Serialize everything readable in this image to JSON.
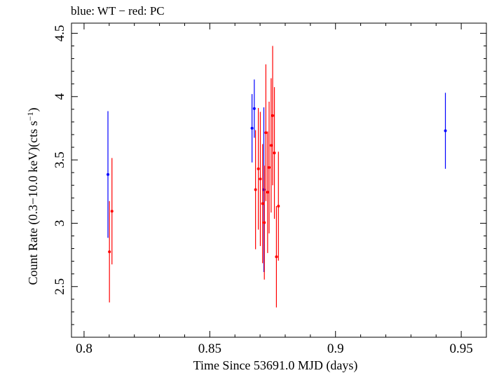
{
  "chart_data": {
    "type": "scatter",
    "title": "blue: WT − red: PC",
    "xlabel": "Time Since 53691.0 MJD (days)",
    "ylabel_main": "Count Rate (0.3−10.0 keV)(cts s",
    "ylabel_sup": "−1",
    "ylabel_close": ")",
    "xlim": [
      0.795,
      0.96
    ],
    "ylim": [
      2.1,
      4.58
    ],
    "x_ticks": [
      0.8,
      0.85,
      0.9,
      0.95
    ],
    "x_tick_labels": [
      "0.8",
      "0.85",
      "0.9",
      "0.95"
    ],
    "y_ticks": [
      2.5,
      3,
      3.5,
      4,
      4.5
    ],
    "y_tick_labels": [
      "2.5",
      "3",
      "3.5",
      "4",
      "4.5"
    ],
    "grid": false,
    "series": [
      {
        "name": "WT",
        "color": "#0000ff",
        "points": [
          {
            "x": 0.8095,
            "y": 3.385,
            "yerr": 0.5
          },
          {
            "x": 0.8668,
            "y": 3.75,
            "yerr": 0.27
          },
          {
            "x": 0.8677,
            "y": 3.905,
            "yerr": 0.23
          },
          {
            "x": 0.8715,
            "y": 3.265,
            "yerr": 0.65
          },
          {
            "x": 0.9437,
            "y": 3.73,
            "yerr": 0.3
          }
        ]
      },
      {
        "name": "PC",
        "color": "#ff0000",
        "points": [
          {
            "x": 0.8101,
            "y": 2.775,
            "yerr": 0.4
          },
          {
            "x": 0.8111,
            "y": 3.095,
            "yerr": 0.42
          },
          {
            "x": 0.8682,
            "y": 3.265,
            "yerr": 0.47
          },
          {
            "x": 0.8693,
            "y": 3.43,
            "yerr": 0.48
          },
          {
            "x": 0.8701,
            "y": 3.35,
            "yerr": 0.53
          },
          {
            "x": 0.871,
            "y": 3.155,
            "yerr": 0.47
          },
          {
            "x": 0.8717,
            "y": 3.005,
            "yerr": 0.45
          },
          {
            "x": 0.8723,
            "y": 3.715,
            "yerr": 0.54
          },
          {
            "x": 0.873,
            "y": 3.245,
            "yerr": 0.48
          },
          {
            "x": 0.8736,
            "y": 3.44,
            "yerr": 0.52
          },
          {
            "x": 0.8744,
            "y": 3.615,
            "yerr": 0.53
          },
          {
            "x": 0.875,
            "y": 3.85,
            "yerr": 0.55
          },
          {
            "x": 0.8757,
            "y": 3.555,
            "yerr": 0.52
          },
          {
            "x": 0.8765,
            "y": 2.735,
            "yerr": 0.4
          },
          {
            "x": 0.8773,
            "y": 3.135,
            "yerr": 0.43
          }
        ]
      }
    ]
  }
}
